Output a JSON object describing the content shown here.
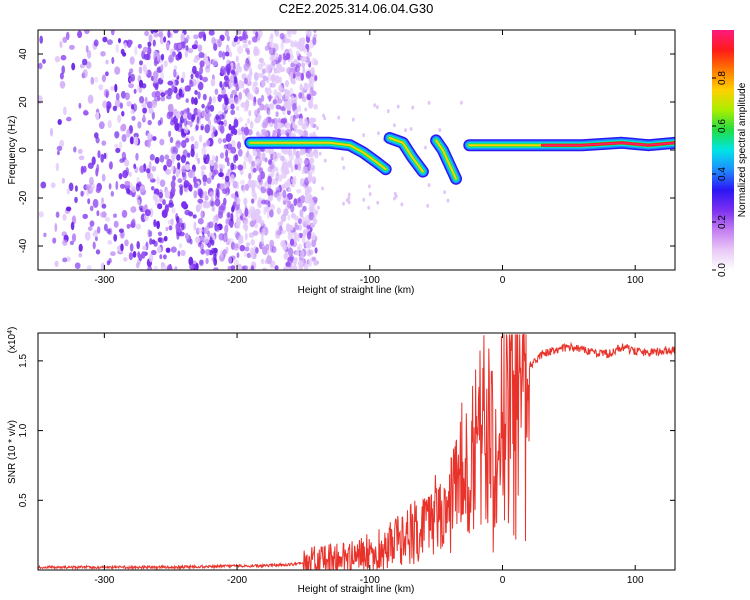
{
  "title": "C2E2.2025.314.06.04.G30",
  "colors": {
    "snr_line": "#e8322a",
    "scatter_purple": "#7b2ff0",
    "colormap": [
      "#ffffff",
      "#e9c8f7",
      "#c47df2",
      "#7b2ff0",
      "#2b16f5",
      "#1e8cff",
      "#00e5e5",
      "#22dd44",
      "#aaee00",
      "#ffd000",
      "#ff7a00",
      "#ff1a1a",
      "#ff1a80"
    ]
  },
  "chart_data": [
    {
      "type": "heatmap",
      "title": "C2E2.2025.314.06.04.G30",
      "xlabel": "Height of straight line (km)",
      "ylabel": "Frequency (Hz)",
      "xlim": [
        -350,
        130
      ],
      "ylim": [
        -50,
        50
      ],
      "xticks": [
        -300,
        -200,
        -100,
        0,
        100
      ],
      "yticks": [
        -40,
        -20,
        0,
        20,
        40
      ],
      "colorbar": {
        "label": "Normalized spectral amplitude",
        "range": [
          0,
          1
        ],
        "ticks": [
          "0.0",
          "0.2",
          "0.4",
          "0.6",
          "0.8"
        ]
      },
      "features": {
        "noise_region_x": [
          -350,
          -150
        ],
        "doppler_track": [
          {
            "x": -190,
            "y": 3
          },
          {
            "x": -170,
            "y": 3
          },
          {
            "x": -150,
            "y": 3
          },
          {
            "x": -130,
            "y": 3
          },
          {
            "x": -115,
            "y": 2
          },
          {
            "x": -105,
            "y": -1
          },
          {
            "x": -95,
            "y": -5
          },
          {
            "x": -88,
            "y": -8
          },
          {
            "x": -85,
            "y": 5
          },
          {
            "x": -75,
            "y": 3
          },
          {
            "x": -68,
            "y": -3
          },
          {
            "x": -60,
            "y": -9
          },
          {
            "x": -50,
            "y": 4
          },
          {
            "x": -45,
            "y": 0
          },
          {
            "x": -40,
            "y": -6
          },
          {
            "x": -35,
            "y": -12
          },
          {
            "x": -25,
            "y": 2
          },
          {
            "x": 0,
            "y": 2
          },
          {
            "x": 30,
            "y": 2
          },
          {
            "x": 60,
            "y": 2
          },
          {
            "x": 90,
            "y": 3
          },
          {
            "x": 110,
            "y": 2
          },
          {
            "x": 130,
            "y": 3
          }
        ]
      }
    },
    {
      "type": "line",
      "xlabel": "Height of straight line (km)",
      "ylabel": "SNR (10 * v/v)",
      "multiplier": "(x10",
      "multiplier_exp": "4",
      "xlim": [
        -350,
        130
      ],
      "ylim": [
        0,
        1.7
      ],
      "xticks": [
        -300,
        -200,
        -100,
        0,
        100
      ],
      "yticks": [
        "0.5",
        "1.0",
        "1.5"
      ],
      "series": [
        {
          "x": [
            -350,
            -300,
            -250,
            -200,
            -180,
            -160,
            -150,
            -140,
            -120,
            -100,
            -90,
            -80,
            -70,
            -60,
            -50,
            -45,
            -40,
            -35,
            -30,
            -25,
            -20,
            -15,
            -10,
            -5,
            0,
            5,
            10,
            15,
            20,
            30,
            40,
            50,
            60,
            70,
            80,
            90,
            100,
            110,
            120,
            130
          ],
          "y": [
            0.02,
            0.02,
            0.02,
            0.03,
            0.03,
            0.04,
            0.05,
            0.06,
            0.09,
            0.12,
            0.16,
            0.2,
            0.25,
            0.3,
            0.4,
            0.45,
            0.5,
            0.65,
            0.8,
            0.7,
            0.9,
            1.1,
            1.0,
            0.85,
            1.2,
            1.25,
            1.3,
            1.35,
            1.45,
            1.55,
            1.58,
            1.6,
            1.58,
            1.56,
            1.55,
            1.6,
            1.57,
            1.56,
            1.57,
            1.58
          ]
        }
      ]
    }
  ]
}
